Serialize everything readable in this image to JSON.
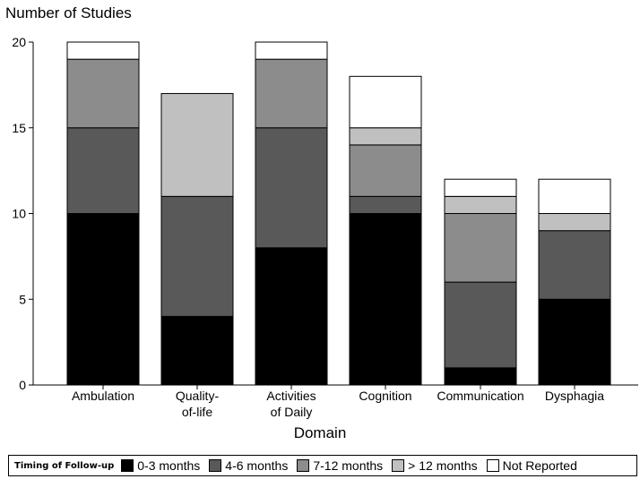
{
  "chart_data": {
    "type": "bar",
    "stacked": true,
    "ylabel": "Number of Studies",
    "xlabel": "Domain",
    "ylim": [
      0,
      20
    ],
    "yticks": [
      0,
      5,
      10,
      15,
      20
    ],
    "categories": [
      [
        "Ambulation"
      ],
      [
        "Quality-",
        "of-life"
      ],
      [
        "Activities",
        "of Daily"
      ],
      [
        "Cognition"
      ],
      [
        "Communication"
      ],
      [
        "Dysphagia"
      ]
    ],
    "series": [
      {
        "name": "0-3 months",
        "color": "#000000",
        "values": [
          10,
          4,
          8,
          10,
          1,
          5
        ]
      },
      {
        "name": "4-6 months",
        "color": "#595959",
        "values": [
          5,
          7,
          7,
          1,
          5,
          4
        ]
      },
      {
        "name": "7-12 months",
        "color": "#8c8c8c",
        "values": [
          4,
          0,
          4,
          3,
          4,
          0
        ]
      },
      {
        "name": "> 12 months",
        "color": "#c0c0c0",
        "values": [
          0,
          6,
          0,
          1,
          1,
          1
        ]
      },
      {
        "name": "Not Reported",
        "color": "#ffffff",
        "values": [
          1,
          0,
          1,
          3,
          1,
          2
        ]
      }
    ],
    "legend": {
      "title": "Timing of Follow-up",
      "position": "bottom"
    }
  }
}
